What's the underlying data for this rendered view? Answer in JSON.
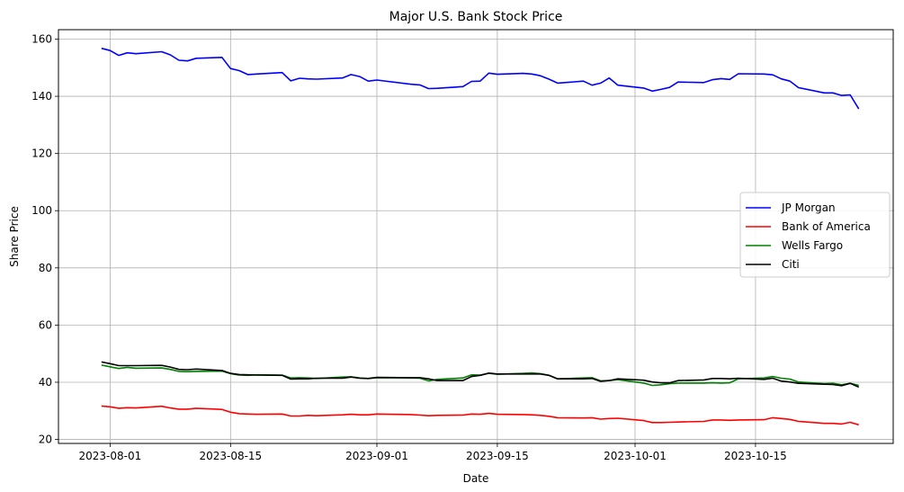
{
  "chart_data": {
    "type": "line",
    "title": "Major U.S. Bank Stock Price",
    "xlabel": "Date",
    "ylabel": "Share Price",
    "ylim": [
      18.6,
      163.3
    ],
    "xlim": [
      "2023-07-26",
      "2023-10-31"
    ],
    "yticks": [
      20,
      40,
      60,
      80,
      100,
      120,
      140,
      160
    ],
    "xticks": [
      "2023-08-01",
      "2023-08-15",
      "2023-09-01",
      "2023-09-15",
      "2023-10-01",
      "2023-10-15"
    ],
    "grid": true,
    "legend_position": "center-right",
    "x": [
      "2023-07-31",
      "2023-08-01",
      "2023-08-02",
      "2023-08-03",
      "2023-08-04",
      "2023-08-07",
      "2023-08-08",
      "2023-08-09",
      "2023-08-10",
      "2023-08-11",
      "2023-08-14",
      "2023-08-15",
      "2023-08-16",
      "2023-08-17",
      "2023-08-18",
      "2023-08-21",
      "2023-08-22",
      "2023-08-23",
      "2023-08-24",
      "2023-08-25",
      "2023-08-28",
      "2023-08-29",
      "2023-08-30",
      "2023-08-31",
      "2023-09-01",
      "2023-09-05",
      "2023-09-06",
      "2023-09-07",
      "2023-09-08",
      "2023-09-11",
      "2023-09-12",
      "2023-09-13",
      "2023-09-14",
      "2023-09-15",
      "2023-09-18",
      "2023-09-19",
      "2023-09-20",
      "2023-09-21",
      "2023-09-22",
      "2023-09-25",
      "2023-09-26",
      "2023-09-27",
      "2023-09-28",
      "2023-09-29",
      "2023-10-02",
      "2023-10-03",
      "2023-10-04",
      "2023-10-05",
      "2023-10-06",
      "2023-10-09",
      "2023-10-10",
      "2023-10-11",
      "2023-10-12",
      "2023-10-13",
      "2023-10-16",
      "2023-10-17",
      "2023-10-18",
      "2023-10-19",
      "2023-10-20",
      "2023-10-23",
      "2023-10-24",
      "2023-10-25",
      "2023-10-26",
      "2023-10-27"
    ],
    "series": [
      {
        "name": "JP Morgan",
        "color": "#0000ff",
        "values": [
          156.8,
          156.0,
          154.3,
          155.2,
          154.9,
          155.6,
          154.5,
          152.6,
          152.4,
          153.3,
          153.6,
          149.7,
          149.0,
          147.6,
          147.8,
          148.3,
          145.4,
          146.3,
          146.1,
          146.0,
          146.4,
          147.6,
          146.9,
          145.3,
          145.7,
          144.2,
          144.0,
          142.7,
          142.8,
          143.4,
          145.2,
          145.3,
          148.1,
          147.7,
          148.0,
          147.8,
          147.2,
          146.0,
          144.6,
          145.3,
          143.9,
          144.6,
          146.4,
          143.9,
          142.9,
          141.8,
          142.4,
          143.1,
          145.0,
          144.8,
          145.8,
          146.2,
          145.9,
          147.9,
          147.8,
          147.5,
          146.1,
          145.3,
          143.0,
          141.2,
          141.2,
          140.3,
          140.5,
          135.6
        ]
      },
      {
        "name": "Bank of America",
        "color": "#ff0000",
        "values": [
          31.7,
          31.4,
          30.9,
          31.1,
          31.0,
          31.6,
          31.0,
          30.6,
          30.6,
          30.9,
          30.5,
          29.5,
          29.0,
          28.9,
          28.8,
          28.9,
          28.2,
          28.2,
          28.4,
          28.3,
          28.6,
          28.8,
          28.6,
          28.6,
          28.9,
          28.7,
          28.5,
          28.3,
          28.4,
          28.5,
          28.9,
          28.8,
          29.1,
          28.8,
          28.7,
          28.6,
          28.4,
          28.1,
          27.6,
          27.5,
          27.6,
          27.1,
          27.3,
          27.4,
          26.6,
          25.9,
          25.9,
          26.0,
          26.1,
          26.3,
          26.8,
          26.8,
          26.7,
          26.8,
          26.9,
          27.6,
          27.3,
          27.0,
          26.3,
          25.6,
          25.6,
          25.4,
          26.0,
          25.1
        ]
      },
      {
        "name": "Wells Fargo",
        "color": "#008000",
        "values": [
          46.0,
          45.4,
          44.8,
          45.2,
          44.9,
          45.0,
          44.5,
          43.8,
          43.7,
          43.8,
          43.9,
          43.0,
          42.5,
          42.4,
          42.6,
          42.5,
          41.5,
          41.6,
          41.5,
          41.3,
          41.8,
          41.9,
          41.5,
          41.3,
          41.6,
          41.5,
          41.4,
          40.5,
          41.0,
          41.5,
          42.6,
          42.5,
          43.1,
          42.8,
          43.1,
          43.3,
          43.0,
          42.4,
          41.2,
          41.5,
          41.6,
          40.5,
          40.6,
          40.9,
          39.7,
          38.9,
          39.1,
          39.5,
          39.7,
          39.7,
          39.8,
          39.7,
          39.8,
          41.2,
          41.5,
          42.0,
          41.4,
          41.1,
          40.1,
          39.5,
          39.6,
          39.1,
          39.6,
          38.9
        ]
      },
      {
        "name": "Citi",
        "color": "#000000",
        "values": [
          47.1,
          46.5,
          45.8,
          45.8,
          45.8,
          45.9,
          45.3,
          44.5,
          44.4,
          44.6,
          44.1,
          43.1,
          42.7,
          42.6,
          42.5,
          42.4,
          41.1,
          41.2,
          41.2,
          41.4,
          41.4,
          41.8,
          41.4,
          41.3,
          41.7,
          41.6,
          41.6,
          41.2,
          40.6,
          40.6,
          42.0,
          42.4,
          43.2,
          42.9,
          42.9,
          42.9,
          42.9,
          42.4,
          41.2,
          41.2,
          41.3,
          40.3,
          40.6,
          41.2,
          40.7,
          40.1,
          39.8,
          39.8,
          40.6,
          40.8,
          41.3,
          41.3,
          41.2,
          41.4,
          41.0,
          41.4,
          40.4,
          40.1,
          39.6,
          39.3,
          39.2,
          38.8,
          39.6,
          38.3
        ]
      }
    ]
  }
}
